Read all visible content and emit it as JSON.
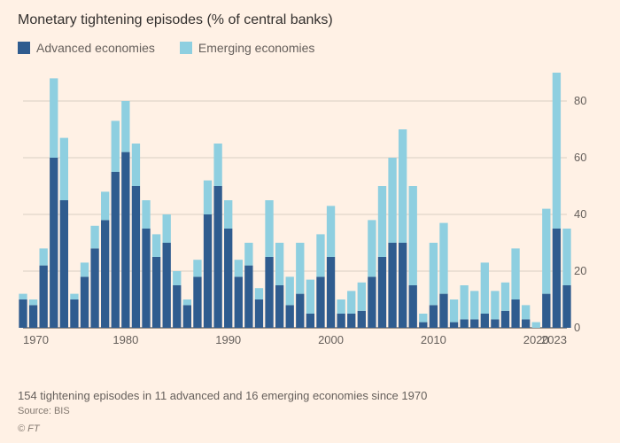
{
  "title": "Monetary tightening episodes (% of central banks)",
  "legend": [
    {
      "label": "Advanced economies",
      "color": "#2f5c8f"
    },
    {
      "label": "Emerging economies",
      "color": "#8ecfe0"
    }
  ],
  "footnote": "154 tightening episodes in 11 advanced and 16 emerging economies since 1970",
  "source": "Source: BIS",
  "copyright": "© FT",
  "chart": {
    "type": "stacked-bar",
    "background_color": "#fff1e5",
    "bar_color_advanced": "#2f5c8f",
    "bar_color_emerging": "#8ecfe0",
    "grid_color": "#d9cfc3",
    "baseline_color": "#33302e",
    "axis_font_size": 13,
    "x_domain": [
      1970,
      2023
    ],
    "x_ticks": [
      1970,
      1980,
      1990,
      2000,
      2010,
      2020,
      2023
    ],
    "y_domain": [
      0,
      90
    ],
    "y_ticks": [
      0,
      20,
      40,
      60,
      80
    ],
    "series": [
      {
        "year": 1970,
        "adv": 10,
        "eme": 2
      },
      {
        "year": 1971,
        "adv": 8,
        "eme": 2
      },
      {
        "year": 1972,
        "adv": 22,
        "eme": 6
      },
      {
        "year": 1973,
        "adv": 60,
        "eme": 28
      },
      {
        "year": 1974,
        "adv": 45,
        "eme": 22
      },
      {
        "year": 1975,
        "adv": 10,
        "eme": 2
      },
      {
        "year": 1976,
        "adv": 18,
        "eme": 5
      },
      {
        "year": 1977,
        "adv": 28,
        "eme": 8
      },
      {
        "year": 1978,
        "adv": 38,
        "eme": 10
      },
      {
        "year": 1979,
        "adv": 55,
        "eme": 18
      },
      {
        "year": 1980,
        "adv": 62,
        "eme": 18
      },
      {
        "year": 1981,
        "adv": 50,
        "eme": 15
      },
      {
        "year": 1982,
        "adv": 35,
        "eme": 10
      },
      {
        "year": 1983,
        "adv": 25,
        "eme": 8
      },
      {
        "year": 1984,
        "adv": 30,
        "eme": 10
      },
      {
        "year": 1985,
        "adv": 15,
        "eme": 5
      },
      {
        "year": 1986,
        "adv": 8,
        "eme": 2
      },
      {
        "year": 1987,
        "adv": 18,
        "eme": 6
      },
      {
        "year": 1988,
        "adv": 40,
        "eme": 12
      },
      {
        "year": 1989,
        "adv": 50,
        "eme": 15
      },
      {
        "year": 1990,
        "adv": 35,
        "eme": 10
      },
      {
        "year": 1991,
        "adv": 18,
        "eme": 6
      },
      {
        "year": 1992,
        "adv": 22,
        "eme": 8
      },
      {
        "year": 1993,
        "adv": 10,
        "eme": 4
      },
      {
        "year": 1994,
        "adv": 25,
        "eme": 20
      },
      {
        "year": 1995,
        "adv": 15,
        "eme": 15
      },
      {
        "year": 1996,
        "adv": 8,
        "eme": 10
      },
      {
        "year": 1997,
        "adv": 12,
        "eme": 18
      },
      {
        "year": 1998,
        "adv": 5,
        "eme": 12
      },
      {
        "year": 1999,
        "adv": 18,
        "eme": 15
      },
      {
        "year": 2000,
        "adv": 25,
        "eme": 18
      },
      {
        "year": 2001,
        "adv": 5,
        "eme": 5
      },
      {
        "year": 2002,
        "adv": 5,
        "eme": 8
      },
      {
        "year": 2003,
        "adv": 6,
        "eme": 10
      },
      {
        "year": 2004,
        "adv": 18,
        "eme": 20
      },
      {
        "year": 2005,
        "adv": 25,
        "eme": 25
      },
      {
        "year": 2006,
        "adv": 30,
        "eme": 30
      },
      {
        "year": 2007,
        "adv": 30,
        "eme": 40
      },
      {
        "year": 2008,
        "adv": 15,
        "eme": 35
      },
      {
        "year": 2009,
        "adv": 2,
        "eme": 3
      },
      {
        "year": 2010,
        "adv": 8,
        "eme": 22
      },
      {
        "year": 2011,
        "adv": 12,
        "eme": 25
      },
      {
        "year": 2012,
        "adv": 2,
        "eme": 8
      },
      {
        "year": 2013,
        "adv": 3,
        "eme": 12
      },
      {
        "year": 2014,
        "adv": 3,
        "eme": 10
      },
      {
        "year": 2015,
        "adv": 5,
        "eme": 18
      },
      {
        "year": 2016,
        "adv": 3,
        "eme": 10
      },
      {
        "year": 2017,
        "adv": 6,
        "eme": 10
      },
      {
        "year": 2018,
        "adv": 10,
        "eme": 18
      },
      {
        "year": 2019,
        "adv": 3,
        "eme": 5
      },
      {
        "year": 2020,
        "adv": 0,
        "eme": 2
      },
      {
        "year": 2021,
        "adv": 12,
        "eme": 30
      },
      {
        "year": 2022,
        "adv": 35,
        "eme": 55
      },
      {
        "year": 2023,
        "adv": 15,
        "eme": 20
      }
    ]
  }
}
